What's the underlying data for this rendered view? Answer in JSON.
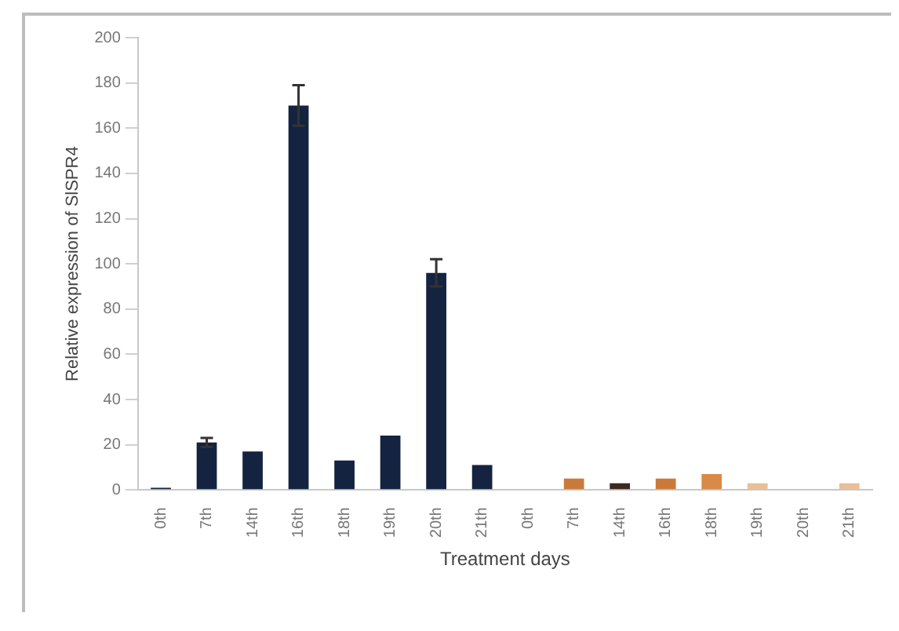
{
  "chart_data": {
    "type": "bar",
    "xlabel": "Treatment days",
    "ylabel": "Relative expression of SlSPR4",
    "categories": [
      "0th",
      "7th",
      "14th",
      "16th",
      "18th",
      "19th",
      "20th",
      "21th",
      "0th",
      "7th",
      "14th",
      "16th",
      "18th",
      "19th",
      "20th",
      "21th"
    ],
    "values": [
      1,
      21,
      17,
      170,
      13,
      24,
      96,
      11,
      0,
      5,
      3,
      5,
      7,
      3,
      0,
      3
    ],
    "colors": [
      "#14233f",
      "#14233f",
      "#14233f",
      "#14233f",
      "#14233f",
      "#14233f",
      "#14233f",
      "#14233f",
      "#e3a46e",
      "#c97a3a",
      "#3a2a20",
      "#c97a3a",
      "#d98a48",
      "#e8bf98",
      "#e8bf98",
      "#e8bf98"
    ],
    "errors": [
      null,
      2,
      null,
      9,
      null,
      null,
      6,
      null,
      null,
      null,
      null,
      null,
      null,
      null,
      null,
      null
    ],
    "ylim": [
      0,
      200
    ],
    "yticks": [
      0,
      20,
      40,
      60,
      80,
      100,
      120,
      140,
      160,
      180,
      200
    ],
    "grid": false,
    "legend": false
  }
}
